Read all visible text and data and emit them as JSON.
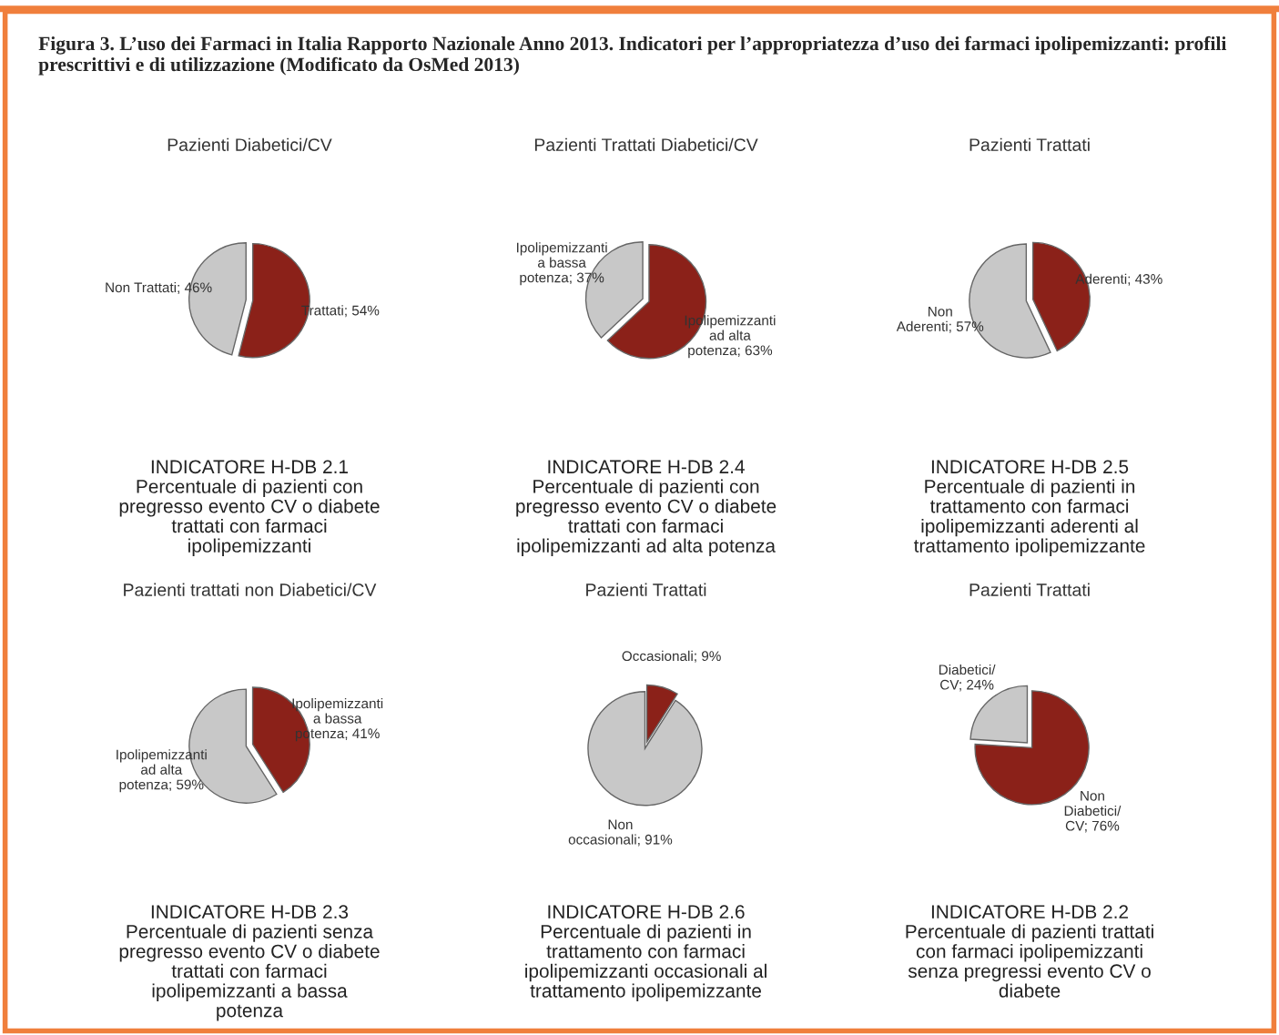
{
  "chart_data": [
    {
      "type": "other",
      "title": "Figura 3. L’uso dei Farmaci in Italia Rapporto Nazionale Anno 2013. Indicatori per l’appropriatezza d’uso dei farmaci ipolipemizzanti: profili prescrittivi e di utilizzazione (Modificato da OsMed 2013)"
    },
    {
      "type": "pie",
      "title": "Pazienti Diabetici/CV",
      "categories": [
        "Non Trattati",
        "Trattati"
      ],
      "values": [
        46,
        54
      ],
      "value_labels": [
        "46%",
        "54%"
      ],
      "colors": [
        "#c8c8c8",
        "#8b2119"
      ],
      "annotations": [
        "INDICATORE H-DB 2.1\nPercentuale di pazienti con\npregresso evento CV o diabete\ntrattati con farmaci\nipolipemizzanti"
      ]
    },
    {
      "type": "pie",
      "title": "Pazienti Trattati Diabetici/CV",
      "categories": [
        "Ipolipemizzanti\na bassa\npotenza",
        "Ipolipemizzanti\nad alta\npotenza"
      ],
      "values": [
        37,
        63
      ],
      "value_labels": [
        "37%",
        "63%"
      ],
      "colors": [
        "#c8c8c8",
        "#8b2119"
      ],
      "annotations": [
        "INDICATORE H-DB 2.4\nPercentuale di pazienti con\npregresso evento CV o diabete\ntrattati con farmaci\nipolipemizzanti ad alta potenza"
      ]
    },
    {
      "type": "pie",
      "title": "Pazienti Trattati",
      "categories": [
        "Non\nAderenti",
        "Aderenti"
      ],
      "values": [
        57,
        43
      ],
      "value_labels": [
        "57%",
        "43%"
      ],
      "colors": [
        "#c8c8c8",
        "#8b2119"
      ],
      "annotations": [
        "INDICATORE H-DB 2.5\nPercentuale di pazienti in\ntrattamento con farmaci\nipolipemizzanti aderenti al\ntrattamento ipolipemizzante"
      ]
    },
    {
      "type": "pie",
      "title": "Pazienti trattati non Diabetici/CV",
      "categories": [
        "Ipolipemizzanti\nad alta\npotenza",
        "Ipolipemizzanti\na bassa\npotenza"
      ],
      "values": [
        59,
        41
      ],
      "value_labels": [
        "59%",
        "41%"
      ],
      "colors": [
        "#c8c8c8",
        "#8b2119"
      ],
      "annotations": [
        "INDICATORE H-DB 2.3\nPercentuale di pazienti senza\npregresso evento CV o diabete\ntrattati con farmaci\nipolipemizzanti a bassa\npotenza"
      ]
    },
    {
      "type": "pie",
      "title": "Pazienti Trattati",
      "categories": [
        "Non\noccasionali",
        "Occasionali"
      ],
      "values": [
        91,
        9
      ],
      "value_labels": [
        "91%",
        "9%"
      ],
      "colors": [
        "#c8c8c8",
        "#8b2119"
      ],
      "annotations": [
        "INDICATORE H-DB 2.6\nPercentuale di pazienti in\ntrattamento con farmaci\nipolipemizzanti occasionali al\ntrattamento ipolipemizzante"
      ]
    },
    {
      "type": "pie",
      "title": "Pazienti Trattati",
      "categories": [
        "Diabetici/\nCV",
        "Non\nDiabetici/\nCV"
      ],
      "values": [
        24,
        76
      ],
      "value_labels": [
        "24%",
        "76%"
      ],
      "colors": [
        "#c8c8c8",
        "#8b2119"
      ],
      "annotations": [
        "INDICATORE H-DB 2.2\nPercentuale di pazienti trattati\ncon farmaci ipolipemizzanti\nsenza pregressi evento CV o\ndiabete"
      ]
    }
  ]
}
